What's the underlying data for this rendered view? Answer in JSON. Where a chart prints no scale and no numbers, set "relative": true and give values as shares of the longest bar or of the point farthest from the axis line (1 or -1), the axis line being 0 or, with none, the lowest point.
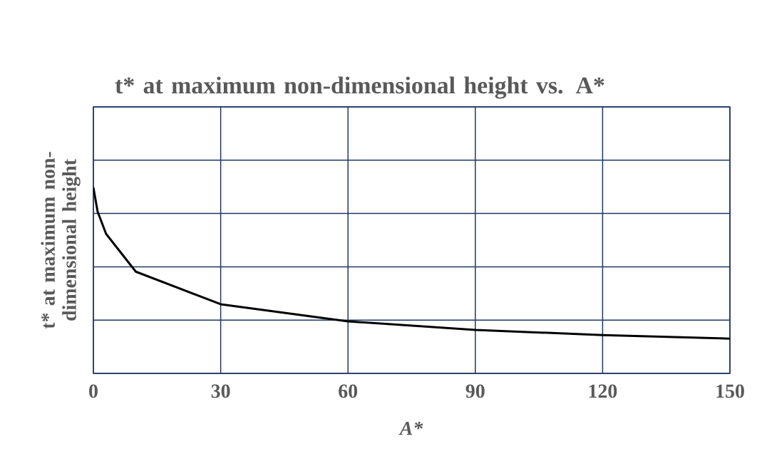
{
  "chart_data": {
    "type": "line",
    "title": "t* at maximum non-dimensional height vs. A*",
    "xlabel": "A*",
    "ylabel": "t* at maximum non-dimensional height",
    "x": [
      0,
      1,
      3,
      10,
      30,
      60,
      90,
      120,
      150
    ],
    "series": [
      {
        "color": "#000000",
        "values": [
          1.0,
          0.87,
          0.75,
          0.547,
          0.372,
          0.28,
          0.234,
          0.206,
          0.187
        ]
      }
    ],
    "relative": true,
    "xlim": [
      0,
      150
    ],
    "xticks": [
      0,
      30,
      60,
      90,
      120,
      150
    ],
    "grid": true,
    "tick_labels": "x",
    "marker": "none",
    "line_style": "solid"
  }
}
